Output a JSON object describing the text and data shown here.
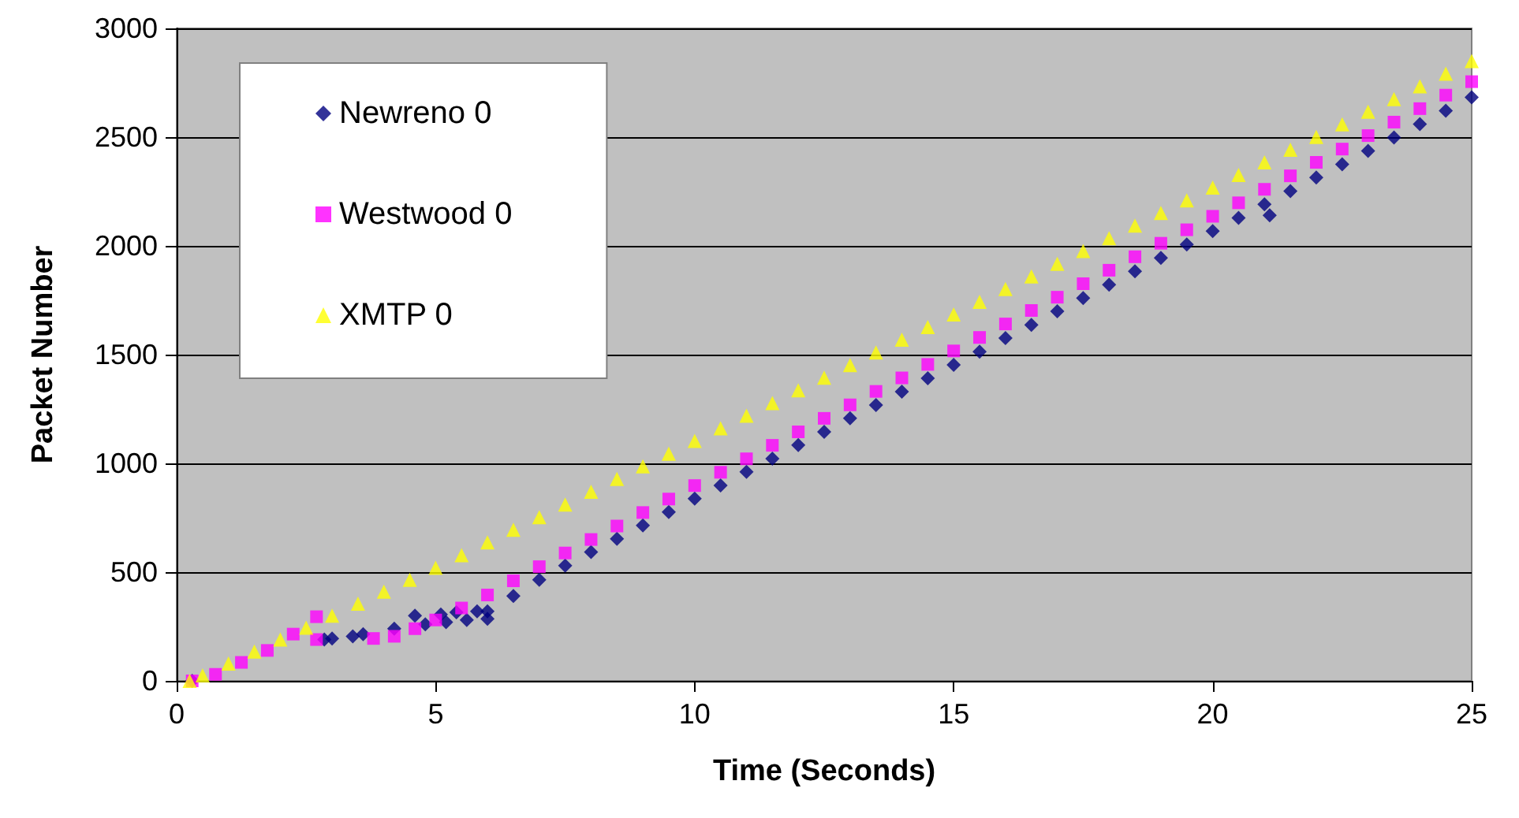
{
  "chart_data": {
    "type": "scatter",
    "xlabel": "Time (Seconds)",
    "ylabel": "Packet Number",
    "xlim": [
      0,
      25
    ],
    "xticks": [
      0,
      5,
      10,
      15,
      20,
      25
    ],
    "ylim": [
      0,
      3000
    ],
    "yticks": [
      0,
      500,
      1000,
      1500,
      2000,
      2500,
      3000
    ],
    "grid": "y",
    "legend": "top left",
    "series": [
      {
        "name": "Newreno 0",
        "color": "#000080",
        "marker": "diamond",
        "x": [
          0.3,
          2.85,
          3.0,
          3.4,
          3.6,
          4.2,
          4.6,
          5.1,
          5.4,
          5.8,
          4.8,
          5.2,
          5.6,
          6,
          6,
          6.5,
          7,
          7.5,
          8,
          8.5,
          9,
          9.5,
          10,
          10.5,
          11,
          11.5,
          12,
          12.5,
          13,
          13.5,
          14,
          14.5,
          15,
          15.5,
          16,
          16.5,
          17,
          17.5,
          18,
          18.5,
          19,
          19.5,
          20,
          20.5,
          21,
          21.1,
          21.5,
          22,
          22.5,
          23,
          23.5,
          24,
          24.5,
          25
        ],
        "values": [
          0,
          190,
          195,
          205,
          215,
          240,
          300,
          305,
          315,
          320,
          260,
          270,
          280,
          285,
          320,
          390,
          465,
          530,
          592,
          653,
          715,
          776,
          838,
          899,
          961,
          1022,
          1084,
          1145,
          1207,
          1268,
          1330,
          1391,
          1453,
          1514,
          1576,
          1637,
          1699,
          1760,
          1822,
          1883,
          1945,
          2006,
          2068,
          2129,
          2191,
          2140,
          2252,
          2314,
          2375,
          2437,
          2498,
          2560,
          2621,
          2683
        ]
      },
      {
        "name": "Westwood 0",
        "color": "#ff00ff",
        "marker": "square",
        "x": [
          0.3,
          0.75,
          1.25,
          1.75,
          2.25,
          2.7,
          2.7,
          3.8,
          4.2,
          4.6,
          5,
          5.5,
          6,
          6.5,
          7,
          7.5,
          8,
          8.5,
          9,
          9.5,
          10,
          10.5,
          11,
          11.5,
          12,
          12.5,
          13,
          13.5,
          14,
          14.5,
          15,
          15.5,
          16,
          16.5,
          17,
          17.5,
          18,
          18.5,
          19,
          19.5,
          20,
          20.5,
          21,
          21.5,
          22,
          22.5,
          23,
          23.5,
          24,
          24.5,
          25
        ],
        "values": [
          0,
          30,
          85,
          140,
          215,
          295,
          190,
          195,
          205,
          240,
          280,
          335,
          395,
          460,
          525,
          588,
          650,
          712,
          774,
          836,
          898,
          959,
          1021,
          1083,
          1145,
          1207,
          1269,
          1331,
          1393,
          1455,
          1517,
          1579,
          1641,
          1703,
          1764,
          1826,
          1888,
          1950,
          2012,
          2074,
          2136,
          2198,
          2260,
          2322,
          2384,
          2445,
          2507,
          2569,
          2631,
          2693,
          2755
        ]
      },
      {
        "name": "XMTP 0",
        "color": "#ffff00",
        "marker": "triangle",
        "x": [
          0.25,
          0.5,
          1,
          1.5,
          2,
          2.5,
          3,
          3.5,
          4,
          4.5,
          5,
          5.5,
          6,
          6.5,
          7,
          7.5,
          8,
          8.5,
          9,
          9.5,
          10,
          10.5,
          11,
          11.5,
          12,
          12.5,
          13,
          13.5,
          14,
          14.5,
          15,
          15.5,
          16,
          16.5,
          17,
          17.5,
          18,
          18.5,
          19,
          19.5,
          20,
          20.5,
          21,
          21.5,
          22,
          22.5,
          23,
          23.5,
          24,
          24.5,
          25
        ],
        "values": [
          0,
          25,
          80,
          135,
          190,
          245,
          300,
          355,
          410,
          465,
          520,
          578,
          637,
          695,
          753,
          811,
          870,
          928,
          986,
          1044,
          1103,
          1161,
          1219,
          1277,
          1336,
          1394,
          1452,
          1510,
          1569,
          1627,
          1685,
          1743,
          1802,
          1860,
          1918,
          1976,
          2035,
          2093,
          2151,
          2209,
          2268,
          2326,
          2384,
          2442,
          2501,
          2559,
          2617,
          2675,
          2734,
          2792,
          2850
        ]
      }
    ]
  }
}
